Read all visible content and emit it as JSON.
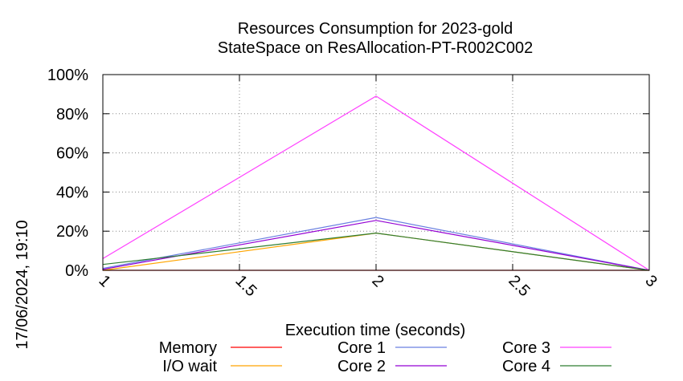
{
  "chart_data": {
    "type": "line",
    "title_line1": "Resources Consumption for 2023-gold",
    "title_line2": "StateSpace on ResAllocation-PT-R002C002",
    "xlabel": "Execution time (seconds)",
    "ylabel": "",
    "timestamp": "17/06/2024, 19:10",
    "xlim": [
      1,
      3
    ],
    "ylim": [
      0,
      100
    ],
    "x_ticks": [
      {
        "value": 1,
        "label": "1"
      },
      {
        "value": 1.5,
        "label": "1.5"
      },
      {
        "value": 2,
        "label": "2"
      },
      {
        "value": 2.5,
        "label": "2.5"
      },
      {
        "value": 3,
        "label": "3"
      }
    ],
    "y_ticks": [
      {
        "value": 0,
        "label": "0%"
      },
      {
        "value": 20,
        "label": "20%"
      },
      {
        "value": 40,
        "label": "40%"
      },
      {
        "value": 60,
        "label": "60%"
      },
      {
        "value": 80,
        "label": "80%"
      },
      {
        "value": 100,
        "label": "100%"
      }
    ],
    "grid": true,
    "legend_placement": "bottom",
    "x": [
      1,
      2,
      3
    ],
    "series": [
      {
        "name": "Memory",
        "color": "#ff0000",
        "values": [
          0,
          0,
          0
        ]
      },
      {
        "name": "I/O wait",
        "color": "#ffa500",
        "values": [
          0,
          19,
          0
        ]
      },
      {
        "name": "Core 1",
        "color": "#6a80e0",
        "values": [
          1,
          27,
          0
        ]
      },
      {
        "name": "Core 2",
        "color": "#9400d3",
        "values": [
          0.5,
          25.5,
          0
        ]
      },
      {
        "name": "Core 3",
        "color": "#ff40ff",
        "values": [
          6,
          89,
          0
        ]
      },
      {
        "name": "Core 4",
        "color": "#2e7d32",
        "values": [
          3,
          19,
          0
        ]
      }
    ]
  }
}
